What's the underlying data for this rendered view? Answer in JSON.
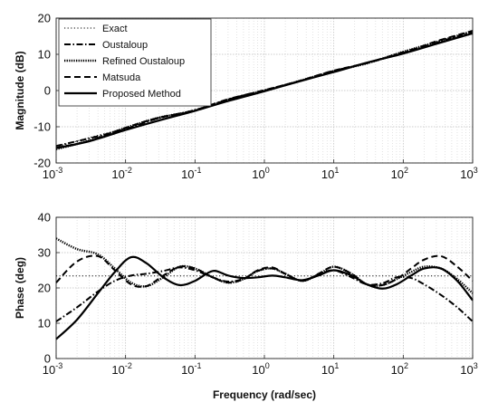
{
  "chart_data": [
    {
      "type": "line",
      "name": "magnitude",
      "xlabel": "",
      "ylabel": "Magnitude (dB)",
      "xscale": "log",
      "xlim": [
        0.001,
        1000
      ],
      "ylim": [
        -20,
        20
      ],
      "xticks": [
        {
          "base": "10",
          "exp": "-3",
          "value": 0.001
        },
        {
          "base": "10",
          "exp": "-2",
          "value": 0.01
        },
        {
          "base": "10",
          "exp": "-1",
          "value": 0.1
        },
        {
          "base": "10",
          "exp": "0",
          "value": 1
        },
        {
          "base": "10",
          "exp": "1",
          "value": 10
        },
        {
          "base": "10",
          "exp": "2",
          "value": 100
        },
        {
          "base": "10",
          "exp": "3",
          "value": 1000
        }
      ],
      "yticks": [
        "-20",
        "-10",
        "0",
        "10",
        "20"
      ],
      "grid": true,
      "legend_position": "top-left",
      "x": [
        0.001,
        0.003,
        0.01,
        0.03,
        0.1,
        0.3,
        1,
        3,
        10,
        30,
        100,
        300,
        1000
      ],
      "series": [
        {
          "name": "Exact",
          "style": "dotted",
          "values": [
            -15.6,
            -13.0,
            -10.4,
            -7.8,
            -5.2,
            -2.6,
            0.0,
            2.6,
            5.2,
            7.8,
            10.4,
            13.0,
            15.6
          ]
        },
        {
          "name": "Oustaloup",
          "style": "dashdot",
          "values": [
            -15.3,
            -13.2,
            -10.6,
            -7.6,
            -5.4,
            -2.4,
            0.1,
            2.4,
            5.4,
            7.6,
            10.6,
            13.2,
            16.2
          ]
        },
        {
          "name": "Refined Oustaloup",
          "style": "dense-dotted",
          "values": [
            -16.2,
            -13.8,
            -10.3,
            -7.5,
            -5.5,
            -2.5,
            0.0,
            2.5,
            5.4,
            7.5,
            10.7,
            13.4,
            16.4
          ]
        },
        {
          "name": "Matsuda",
          "style": "dashed",
          "values": [
            -15.8,
            -13.9,
            -10.3,
            -7.5,
            -5.6,
            -2.5,
            0.1,
            2.5,
            5.5,
            7.6,
            10.4,
            13.6,
            16.5
          ]
        },
        {
          "name": "Proposed Method",
          "style": "solid",
          "values": [
            -15.9,
            -14.0,
            -10.9,
            -8.3,
            -5.6,
            -2.9,
            -0.2,
            2.4,
            5.1,
            7.7,
            10.2,
            12.9,
            15.8
          ]
        }
      ]
    },
    {
      "type": "line",
      "name": "phase",
      "xlabel": "Frequency (rad/sec)",
      "ylabel": "Phase (deg)",
      "xscale": "log",
      "xlim": [
        0.001,
        1000
      ],
      "ylim": [
        0,
        40
      ],
      "xticks": [
        {
          "base": "10",
          "exp": "-3",
          "value": 0.001
        },
        {
          "base": "10",
          "exp": "-2",
          "value": 0.01
        },
        {
          "base": "10",
          "exp": "-1",
          "value": 0.1
        },
        {
          "base": "10",
          "exp": "0",
          "value": 1
        },
        {
          "base": "10",
          "exp": "1",
          "value": 10
        },
        {
          "base": "10",
          "exp": "2",
          "value": 100
        },
        {
          "base": "10",
          "exp": "3",
          "value": 1000
        }
      ],
      "yticks": [
        "0",
        "10",
        "20",
        "30",
        "40"
      ],
      "grid": true,
      "x": [
        0.001,
        0.002,
        0.004,
        0.007,
        0.012,
        0.02,
        0.035,
        0.06,
        0.1,
        0.18,
        0.3,
        0.5,
        0.8,
        1.3,
        2,
        3.5,
        6,
        10,
        18,
        30,
        50,
        80,
        130,
        200,
        350,
        600,
        1000
      ],
      "series": [
        {
          "name": "Exact",
          "style": "dotted",
          "values": [
            23.4,
            23.4,
            23.4,
            23.4,
            23.4,
            23.4,
            23.4,
            23.4,
            23.4,
            23.4,
            23.4,
            23.4,
            23.4,
            23.4,
            23.4,
            23.4,
            23.4,
            23.4,
            23.4,
            23.4,
            23.4,
            23.4,
            23.4,
            23.4,
            23.4,
            23.4,
            23.4
          ]
        },
        {
          "name": "Oustaloup",
          "style": "dashdot",
          "values": [
            10.5,
            14.5,
            19.0,
            22.0,
            23.5,
            24.0,
            24.8,
            25.8,
            25.0,
            23.0,
            21.8,
            22.6,
            24.8,
            25.5,
            24.0,
            22.0,
            23.8,
            25.0,
            23.0,
            21.0,
            21.3,
            23.0,
            22.8,
            21.0,
            18.0,
            14.5,
            10.5
          ]
        },
        {
          "name": "Refined Oustaloup",
          "style": "dense-dotted",
          "values": [
            34.0,
            31.0,
            29.5,
            25.5,
            21.5,
            20.5,
            23.0,
            26.0,
            25.5,
            23.0,
            21.5,
            22.5,
            24.8,
            25.5,
            24.0,
            22.0,
            23.8,
            26.0,
            24.0,
            21.0,
            20.8,
            22.5,
            24.5,
            26.0,
            25.5,
            22.5,
            18.5
          ]
        },
        {
          "name": "Matsuda",
          "style": "dashed",
          "values": [
            21.5,
            27.5,
            29.0,
            25.0,
            21.0,
            20.5,
            23.5,
            26.0,
            25.5,
            23.0,
            21.5,
            22.5,
            25.0,
            25.8,
            24.0,
            22.0,
            24.0,
            26.0,
            24.0,
            21.0,
            20.8,
            22.5,
            25.5,
            28.0,
            29.0,
            26.0,
            22.0
          ]
        },
        {
          "name": "Proposed Method",
          "style": "solid",
          "values": [
            5.5,
            11.0,
            18.5,
            24.5,
            28.7,
            27.0,
            23.0,
            20.8,
            22.0,
            24.8,
            23.5,
            22.8,
            23.0,
            23.5,
            23.0,
            22.2,
            23.5,
            25.0,
            23.5,
            21.0,
            19.8,
            21.0,
            23.5,
            25.5,
            25.5,
            22.0,
            16.5
          ]
        }
      ]
    }
  ]
}
